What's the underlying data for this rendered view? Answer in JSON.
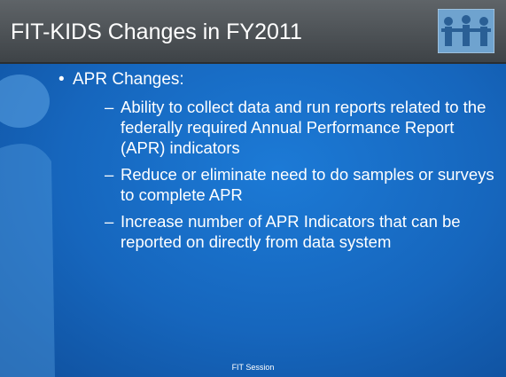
{
  "header": {
    "title": "FIT-KIDS Changes in FY2011"
  },
  "bullets": [
    {
      "text": "APR Changes:",
      "sub": [
        "Ability to collect data and run reports related to the federally required Annual Performance Report (APR) indicators",
        "Reduce or eliminate need to do samples or surveys to complete APR",
        "Increase number of APR Indicators that can be reported on directly from data system"
      ]
    }
  ],
  "footer": "FIT Session"
}
